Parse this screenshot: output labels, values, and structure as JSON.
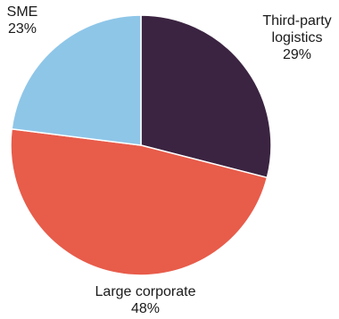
{
  "chart_data": {
    "type": "pie",
    "start_angle_deg": 0,
    "direction": "clockwise",
    "slices": [
      {
        "label_lines": [
          "Third-party",
          "logistics"
        ],
        "percent_label": "29%",
        "value": 29,
        "color": "#3b2441"
      },
      {
        "label_lines": [
          "Large corporate"
        ],
        "percent_label": "48%",
        "value": 48,
        "color": "#e85c4a"
      },
      {
        "label_lines": [
          "SME"
        ],
        "percent_label": "23%",
        "value": 23,
        "color": "#8ec6e8"
      }
    ]
  }
}
